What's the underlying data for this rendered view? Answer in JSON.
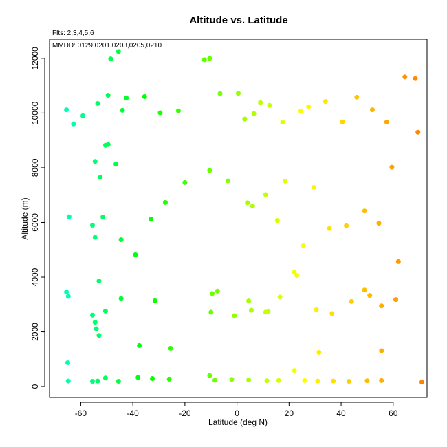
{
  "chart_data": {
    "type": "scatter",
    "title": "Altitude vs. Latitude",
    "annotations": [
      "Flts: 2,3,4,5,6",
      "MMDD: 0129,0201,0203,0205,0210"
    ],
    "xlabel": "Latitude (deg N)",
    "ylabel": "Altitude (m)",
    "xlim": [
      -72,
      73
    ],
    "ylim": [
      -400,
      12700
    ],
    "xticks": [
      -60,
      -40,
      -20,
      0,
      20,
      40,
      60
    ],
    "yticks": [
      0,
      2000,
      4000,
      6000,
      8000,
      10000,
      12000
    ],
    "grid": false,
    "legend": "none",
    "color_scale": {
      "by": "latitude",
      "colors": [
        "#00ffcc",
        "#00ff00",
        "#ffff00",
        "#ff8000"
      ]
    },
    "points": [
      [
        -45.5,
        12250
      ],
      [
        -48.5,
        11980
      ],
      [
        -12.5,
        11950
      ],
      [
        -10.5,
        12000
      ],
      [
        64.5,
        11320
      ],
      [
        68.5,
        11260
      ],
      [
        69.5,
        9300
      ],
      [
        -65.5,
        10120
      ],
      [
        -62.8,
        9600
      ],
      [
        -59.2,
        9900
      ],
      [
        -49.5,
        10650
      ],
      [
        -53.5,
        10350
      ],
      [
        -42.5,
        10550
      ],
      [
        -35.5,
        10600
      ],
      [
        -44,
        10100
      ],
      [
        -29.5,
        10010
      ],
      [
        -22.5,
        10080
      ],
      [
        -6.5,
        10710
      ],
      [
        0.5,
        10720
      ],
      [
        9,
        10380
      ],
      [
        12.5,
        10280
      ],
      [
        3,
        9780
      ],
      [
        6.5,
        9980
      ],
      [
        17.5,
        9670
      ],
      [
        24.5,
        10070
      ],
      [
        27.5,
        10230
      ],
      [
        34,
        10420
      ],
      [
        40.5,
        9680
      ],
      [
        46,
        10580
      ],
      [
        52,
        10120
      ],
      [
        57.5,
        9670
      ],
      [
        -50.5,
        8820
      ],
      [
        -49.5,
        8850
      ],
      [
        -54.5,
        8230
      ],
      [
        -46.5,
        8130
      ],
      [
        -52.5,
        7650
      ],
      [
        -10.5,
        7900
      ],
      [
        -20,
        7460
      ],
      [
        -3.5,
        7520
      ],
      [
        18.5,
        7510
      ],
      [
        29.5,
        7280
      ],
      [
        59.5,
        8020
      ],
      [
        -27.5,
        6730
      ],
      [
        4,
        6720
      ],
      [
        6,
        6600
      ],
      [
        11,
        7020
      ],
      [
        49,
        6420
      ],
      [
        15.5,
        6070
      ],
      [
        -64.5,
        6210
      ],
      [
        -51.5,
        6200
      ],
      [
        -55.5,
        5900
      ],
      [
        -33,
        6120
      ],
      [
        -54.5,
        5460
      ],
      [
        -44.5,
        5370
      ],
      [
        35.5,
        5780
      ],
      [
        42,
        5880
      ],
      [
        54.5,
        5970
      ],
      [
        25.5,
        5150
      ],
      [
        -39,
        4820
      ],
      [
        62,
        4570
      ],
      [
        -65.5,
        3460
      ],
      [
        -64.8,
        3300
      ],
      [
        -53,
        3860
      ],
      [
        -44.5,
        3220
      ],
      [
        -31.5,
        3140
      ],
      [
        22,
        4180
      ],
      [
        23,
        4060
      ],
      [
        -9.5,
        3400
      ],
      [
        -7.5,
        3490
      ],
      [
        4.5,
        3130
      ],
      [
        16.5,
        3270
      ],
      [
        49,
        3530
      ],
      [
        51,
        3330
      ],
      [
        61,
        3180
      ],
      [
        44,
        3110
      ],
      [
        -50.5,
        2760
      ],
      [
        -55.5,
        2610
      ],
      [
        -54.5,
        2350
      ],
      [
        -54,
        2110
      ],
      [
        -53,
        1870
      ],
      [
        -10,
        2720
      ],
      [
        -1,
        2590
      ],
      [
        5.5,
        2790
      ],
      [
        11,
        2720
      ],
      [
        12,
        2740
      ],
      [
        30.5,
        2810
      ],
      [
        36.5,
        2670
      ],
      [
        55.5,
        2950
      ],
      [
        -37.5,
        1500
      ],
      [
        -25.5,
        1400
      ],
      [
        -65,
        870
      ],
      [
        31.5,
        1250
      ],
      [
        55.5,
        1310
      ],
      [
        22,
        590
      ],
      [
        -64.8,
        200
      ],
      [
        -55.5,
        190
      ],
      [
        -53.5,
        200
      ],
      [
        -50.5,
        310
      ],
      [
        -45.5,
        190
      ],
      [
        -38,
        330
      ],
      [
        -32.5,
        290
      ],
      [
        -26,
        270
      ],
      [
        -10.5,
        400
      ],
      [
        -8.5,
        230
      ],
      [
        -2,
        260
      ],
      [
        4.5,
        240
      ],
      [
        11.5,
        210
      ],
      [
        16,
        220
      ],
      [
        26,
        220
      ],
      [
        31,
        200
      ],
      [
        37,
        200
      ],
      [
        43,
        190
      ],
      [
        50,
        210
      ],
      [
        55.5,
        220
      ],
      [
        71,
        160
      ]
    ]
  }
}
